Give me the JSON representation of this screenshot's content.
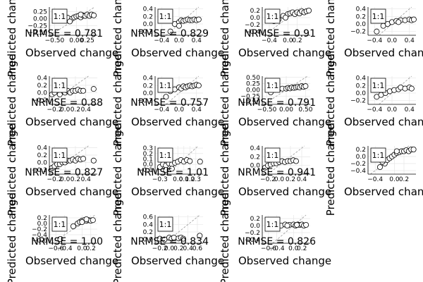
{
  "figure": {
    "xlabel": "Observed change",
    "ylabel": "Predicted change",
    "identity_label": "1:1",
    "nrmse_prefix": "NRMSE = ",
    "colors": {
      "point_fill": "#ffffff",
      "point_stroke": "#000000",
      "identity_line": "#9a9a9a",
      "grid": "#e6e6e6",
      "frame": "#000000",
      "text": "#000000"
    }
  },
  "chart_data": [
    {
      "type": "scatter",
      "nrmse": "0.781",
      "xticks": [
        "−0.50",
        "0.00",
        "0.25"
      ],
      "xtick_values": [
        -0.5,
        0.0,
        0.25
      ],
      "yticks": [
        "0.25",
        "0.00",
        "−0.25",
        "−0.50"
      ],
      "ytick_values": [
        0.25,
        0.0,
        -0.25,
        -0.5
      ],
      "xlim": [
        -0.62,
        0.48
      ],
      "ylim": [
        -0.6,
        0.42
      ],
      "points": [
        [
          -0.3,
          -0.05
        ],
        [
          -0.2,
          0.03
        ],
        [
          -0.1,
          0.0
        ],
        [
          -0.05,
          0.05
        ],
        [
          0.0,
          0.08
        ],
        [
          0.05,
          0.1
        ],
        [
          0.1,
          0.05
        ],
        [
          0.15,
          0.12
        ],
        [
          0.2,
          0.1
        ],
        [
          0.25,
          0.15
        ],
        [
          0.3,
          0.1
        ],
        [
          0.35,
          0.15
        ],
        [
          0.4,
          0.12
        ],
        [
          -0.15,
          -0.1
        ],
        [
          0.1,
          0.15
        ]
      ],
      "outside_points": []
    },
    {
      "type": "scatter",
      "nrmse": "0.829",
      "xticks": [
        "−0.4",
        "0.0",
        "0.4"
      ],
      "xtick_values": [
        -0.4,
        0.0,
        0.4
      ],
      "yticks": [
        "0.4",
        "0.2",
        "0.0",
        "−0.2"
      ],
      "ytick_values": [
        0.4,
        0.2,
        0.0,
        -0.2
      ],
      "xlim": [
        -0.55,
        0.55
      ],
      "ylim": [
        -0.3,
        0.45
      ],
      "points": [
        [
          -0.2,
          -0.2
        ],
        [
          -0.1,
          0.0
        ],
        [
          0.0,
          0.05
        ],
        [
          0.05,
          0.1
        ],
        [
          0.1,
          0.08
        ],
        [
          0.15,
          0.1
        ],
        [
          0.2,
          0.12
        ],
        [
          0.25,
          0.1
        ],
        [
          0.3,
          0.1
        ],
        [
          0.35,
          0.12
        ],
        [
          0.4,
          0.1
        ],
        [
          0.45,
          0.12
        ],
        [
          0.0,
          -0.05
        ]
      ],
      "outside_points": []
    },
    {
      "type": "scatter",
      "nrmse": "0.91",
      "xticks": [
        "−0.4",
        "0.0",
        "0.2"
      ],
      "xtick_values": [
        -0.4,
        0.0,
        0.2
      ],
      "yticks": [
        "0.2",
        "0.0",
        "−0.2",
        "−0.4"
      ],
      "ytick_values": [
        0.2,
        0.0,
        -0.2,
        -0.4
      ],
      "xlim": [
        -0.55,
        0.48
      ],
      "ylim": [
        -0.5,
        0.3
      ],
      "points": [
        [
          -0.3,
          -0.1
        ],
        [
          -0.2,
          -0.05
        ],
        [
          -0.1,
          0.05
        ],
        [
          0.0,
          0.1
        ],
        [
          0.05,
          0.12
        ],
        [
          0.1,
          0.15
        ],
        [
          0.15,
          0.1
        ],
        [
          0.2,
          0.15
        ],
        [
          0.25,
          0.12
        ],
        [
          0.3,
          0.18
        ],
        [
          0.35,
          0.15
        ],
        [
          0.4,
          0.18
        ],
        [
          0.45,
          0.2
        ],
        [
          -0.05,
          0.0
        ]
      ],
      "outside_points": []
    },
    {
      "type": "scatter",
      "nrmse": "",
      "xticks": [
        "−0.4",
        "0.0",
        "0.4"
      ],
      "xtick_values": [
        -0.4,
        0.0,
        0.4
      ],
      "yticks": [
        "0.4",
        "0.2",
        "0.0",
        "−0.2"
      ],
      "ytick_values": [
        0.4,
        0.2,
        0.0,
        -0.2
      ],
      "xlim": [
        -0.55,
        0.55
      ],
      "ylim": [
        -0.3,
        0.45
      ],
      "points": [
        [
          -0.35,
          -0.2
        ],
        [
          -0.2,
          -0.05
        ],
        [
          -0.1,
          0.0
        ],
        [
          0.0,
          0.05
        ],
        [
          0.1,
          0.08
        ],
        [
          0.2,
          0.1
        ],
        [
          0.3,
          0.1
        ],
        [
          0.4,
          0.12
        ],
        [
          0.45,
          0.1
        ],
        [
          0.5,
          0.12
        ],
        [
          0.15,
          0.05
        ]
      ],
      "outside_points": []
    },
    {
      "type": "scatter",
      "nrmse": "0.88",
      "xticks": [
        "−0.2",
        "0.0",
        "0.2",
        "0.4"
      ],
      "xtick_values": [
        -0.2,
        0.0,
        0.2,
        0.4
      ],
      "yticks": [
        "0.4",
        "0.2",
        "0.0",
        "−0.2"
      ],
      "ytick_values": [
        0.4,
        0.2,
        0.0,
        -0.2
      ],
      "xlim": [
        -0.3,
        0.62
      ],
      "ylim": [
        -0.32,
        0.45
      ],
      "points": [
        [
          -0.25,
          -0.05
        ],
        [
          -0.2,
          0.0
        ],
        [
          -0.1,
          -0.05
        ],
        [
          0.0,
          0.0
        ],
        [
          0.05,
          0.05
        ],
        [
          0.1,
          0.0
        ],
        [
          0.15,
          0.05
        ],
        [
          0.2,
          0.05
        ],
        [
          0.25,
          0.08
        ],
        [
          0.3,
          0.05
        ],
        [
          0.35,
          0.05
        ]
      ],
      "outside_points": [
        [
          0.55,
          0.1
        ]
      ]
    },
    {
      "type": "scatter",
      "nrmse": "0.757",
      "xticks": [
        "−0.4",
        "0.0",
        "0.4"
      ],
      "xtick_values": [
        -0.4,
        0.0,
        0.4
      ],
      "yticks": [
        "0.4",
        "0.2",
        "0.0",
        "−0.2"
      ],
      "ytick_values": [
        0.4,
        0.2,
        0.0,
        -0.2
      ],
      "xlim": [
        -0.55,
        0.55
      ],
      "ylim": [
        -0.3,
        0.45
      ],
      "points": [
        [
          -0.3,
          -0.1
        ],
        [
          -0.2,
          0.05
        ],
        [
          -0.1,
          0.1
        ],
        [
          0.0,
          0.15
        ],
        [
          0.05,
          0.12
        ],
        [
          0.1,
          0.18
        ],
        [
          0.15,
          0.15
        ],
        [
          0.2,
          0.18
        ],
        [
          0.25,
          0.2
        ],
        [
          0.3,
          0.18
        ],
        [
          0.35,
          0.2
        ],
        [
          0.4,
          0.22
        ],
        [
          0.45,
          0.2
        ]
      ],
      "outside_points": []
    },
    {
      "type": "scatter",
      "nrmse": "0.791",
      "xticks": [
        "−0.50",
        "0.00",
        "0.50"
      ],
      "xtick_values": [
        -0.5,
        0.0,
        0.5
      ],
      "yticks": [
        "0.50",
        "0.25",
        "0.00",
        "−0.25",
        "−0.50"
      ],
      "ytick_values": [
        0.5,
        0.25,
        0.0,
        -0.25,
        -0.5
      ],
      "xlim": [
        -0.62,
        0.62
      ],
      "ylim": [
        -0.58,
        0.55
      ],
      "points": [
        [
          -0.4,
          -0.1
        ],
        [
          -0.3,
          0.0
        ],
        [
          -0.2,
          0.02
        ],
        [
          -0.1,
          0.05
        ],
        [
          0.0,
          0.05
        ],
        [
          0.05,
          0.08
        ],
        [
          0.1,
          0.06
        ],
        [
          0.15,
          0.1
        ],
        [
          0.2,
          0.08
        ],
        [
          0.25,
          0.1
        ],
        [
          0.3,
          0.12
        ],
        [
          0.35,
          0.1
        ],
        [
          0.4,
          0.15
        ],
        [
          0.45,
          0.12
        ],
        [
          0.5,
          0.15
        ]
      ],
      "outside_points": []
    },
    {
      "type": "scatter",
      "nrmse": "",
      "xticks": [
        "−0.4",
        "0.0",
        "0.4"
      ],
      "xtick_values": [
        -0.4,
        0.0,
        0.4
      ],
      "yticks": [
        "0.4",
        "0.2",
        "0.0",
        "−0.2"
      ],
      "ytick_values": [
        0.4,
        0.2,
        0.0,
        -0.2
      ],
      "xlim": [
        -0.55,
        0.55
      ],
      "ylim": [
        -0.3,
        0.45
      ],
      "points": [
        [
          -0.35,
          -0.1
        ],
        [
          -0.25,
          -0.05
        ],
        [
          -0.15,
          0.0
        ],
        [
          -0.05,
          0.05
        ],
        [
          0.05,
          0.08
        ],
        [
          0.15,
          0.1
        ],
        [
          0.2,
          0.15
        ],
        [
          0.3,
          0.12
        ],
        [
          0.4,
          0.15
        ],
        [
          0.45,
          0.12
        ]
      ],
      "outside_points": []
    },
    {
      "type": "scatter",
      "nrmse": "0.827",
      "xticks": [
        "−0.2",
        "0.0",
        "0.2",
        "0.4"
      ],
      "xtick_values": [
        -0.2,
        0.0,
        0.2,
        0.4
      ],
      "yticks": [
        "0.4",
        "0.2",
        "0.0",
        "−0.2"
      ],
      "ytick_values": [
        0.4,
        0.2,
        0.0,
        -0.2
      ],
      "xlim": [
        -0.3,
        0.62
      ],
      "ylim": [
        -0.32,
        0.45
      ],
      "points": [
        [
          -0.25,
          -0.15
        ],
        [
          -0.2,
          -0.1
        ],
        [
          -0.15,
          -0.05
        ],
        [
          -0.1,
          -0.05
        ],
        [
          -0.05,
          0.0
        ],
        [
          0.0,
          0.0
        ],
        [
          0.05,
          0.05
        ],
        [
          0.1,
          0.05
        ],
        [
          0.15,
          0.08
        ],
        [
          0.2,
          0.05
        ],
        [
          0.25,
          0.1
        ],
        [
          0.3,
          0.08
        ],
        [
          0.35,
          0.1
        ]
      ],
      "outside_points": [
        [
          0.55,
          0.05
        ]
      ]
    },
    {
      "type": "scatter",
      "nrmse": "1.01",
      "xticks": [
        "−0.3",
        "0.0",
        "0.1",
        "0.2",
        "0.3"
      ],
      "xtick_values": [
        -0.3,
        0.0,
        0.1,
        0.2,
        0.3
      ],
      "yticks": [
        "0.3",
        "0.2",
        "0.1",
        "0.0",
        "−0.1"
      ],
      "ytick_values": [
        0.3,
        0.2,
        0.1,
        0.0,
        -0.1
      ],
      "xlim": [
        -0.38,
        0.42
      ],
      "ylim": [
        -0.18,
        0.34
      ],
      "points": [
        [
          -0.3,
          -0.05
        ],
        [
          -0.25,
          0.0
        ],
        [
          -0.2,
          -0.02
        ],
        [
          -0.15,
          0.02
        ],
        [
          -0.1,
          0.0
        ],
        [
          -0.05,
          0.03
        ],
        [
          0.0,
          0.05
        ],
        [
          0.05,
          0.08
        ],
        [
          0.1,
          0.05
        ],
        [
          0.15,
          0.08
        ],
        [
          0.2,
          0.06
        ],
        [
          -0.2,
          -0.1
        ],
        [
          -0.1,
          -0.08
        ]
      ],
      "outside_points": [
        [
          0.37,
          0.05
        ]
      ]
    },
    {
      "type": "scatter",
      "nrmse": "0.941",
      "xticks": [
        "−0.2",
        "0.0",
        "0.2",
        "0.4"
      ],
      "xtick_values": [
        -0.2,
        0.0,
        0.2,
        0.4
      ],
      "yticks": [
        "0.4",
        "0.2",
        "0.0"
      ],
      "ytick_values": [
        0.4,
        0.2,
        0.0
      ],
      "xlim": [
        -0.3,
        0.55
      ],
      "ylim": [
        -0.2,
        0.45
      ],
      "points": [
        [
          -0.25,
          -0.05
        ],
        [
          -0.2,
          0.0
        ],
        [
          -0.15,
          0.02
        ],
        [
          -0.1,
          0.05
        ],
        [
          -0.05,
          0.05
        ],
        [
          0.0,
          0.08
        ],
        [
          0.05,
          0.1
        ],
        [
          0.1,
          0.08
        ],
        [
          0.15,
          0.1
        ],
        [
          0.2,
          0.1
        ],
        [
          0.25,
          0.12
        ],
        [
          0.3,
          0.1
        ]
      ],
      "outside_points": []
    },
    {
      "type": "scatter",
      "nrmse": "",
      "xticks": [
        "−0.4",
        "0.0",
        "0.2"
      ],
      "xtick_values": [
        -0.4,
        0.0,
        0.2
      ],
      "yticks": [
        "0.2",
        "0.0",
        "−0.2",
        "−0.4"
      ],
      "ytick_values": [
        0.2,
        0.0,
        -0.2,
        -0.4
      ],
      "xlim": [
        -0.55,
        0.45
      ],
      "ylim": [
        -0.5,
        0.3
      ],
      "points": [
        [
          -0.3,
          -0.3
        ],
        [
          -0.2,
          -0.2
        ],
        [
          -0.15,
          -0.1
        ],
        [
          -0.1,
          -0.05
        ],
        [
          -0.05,
          0.0
        ],
        [
          0.0,
          0.05
        ],
        [
          0.05,
          0.1
        ],
        [
          0.1,
          0.12
        ],
        [
          0.15,
          0.15
        ],
        [
          0.2,
          0.15
        ],
        [
          0.25,
          0.18
        ],
        [
          0.3,
          0.15
        ],
        [
          0.35,
          0.2
        ],
        [
          0.4,
          0.2
        ],
        [
          -0.25,
          -0.15
        ],
        [
          0.05,
          0.15
        ]
      ],
      "outside_points": []
    },
    {
      "type": "scatter",
      "nrmse": "1.00",
      "xticks": [
        "−0.6",
        "−0.4",
        "0.0",
        "0.2"
      ],
      "xtick_values": [
        -0.6,
        -0.4,
        0.0,
        0.2
      ],
      "yticks": [
        "0.2",
        "0.0",
        "−0.2",
        "−0.4",
        "−0.6"
      ],
      "ytick_values": [
        0.2,
        0.0,
        -0.2,
        -0.4,
        -0.6
      ],
      "xlim": [
        -0.75,
        0.35
      ],
      "ylim": [
        -0.7,
        0.3
      ],
      "points": [
        [
          -0.2,
          -0.1
        ],
        [
          -0.1,
          0.0
        ],
        [
          -0.05,
          0.05
        ],
        [
          0.0,
          0.1
        ],
        [
          0.05,
          0.12
        ],
        [
          0.1,
          0.1
        ],
        [
          0.15,
          0.12
        ],
        [
          0.2,
          0.1
        ],
        [
          0.25,
          0.12
        ],
        [
          0.0,
          0.05
        ],
        [
          -0.5,
          -0.55
        ],
        [
          0.1,
          0.15
        ]
      ],
      "outside_points": []
    },
    {
      "type": "scatter",
      "nrmse": "0.834",
      "xticks": [
        "−0.2",
        "0.0",
        "0.2",
        "0.4",
        "0.6"
      ],
      "xtick_values": [
        -0.2,
        0.0,
        0.2,
        0.4,
        0.6
      ],
      "yticks": [
        "0.6",
        "0.4",
        "0.2",
        "0.0"
      ],
      "ytick_values": [
        0.6,
        0.4,
        0.2,
        0.0
      ],
      "xlim": [
        -0.3,
        0.72
      ],
      "ylim": [
        -0.1,
        0.65
      ],
      "points": [
        [
          -0.1,
          0.0
        ],
        [
          0.0,
          0.05
        ],
        [
          0.05,
          0.02
        ],
        [
          0.1,
          0.05
        ],
        [
          0.2,
          0.03
        ],
        [
          0.25,
          0.05
        ],
        [
          0.3,
          0.02
        ],
        [
          -0.2,
          0.02
        ]
      ],
      "outside_points": [
        [
          0.65,
          0.1
        ]
      ]
    },
    {
      "type": "scatter",
      "nrmse": "0.826",
      "xticks": [
        "−0.6",
        "−0.4",
        "0.0",
        "0.2"
      ],
      "xtick_values": [
        -0.6,
        -0.4,
        0.0,
        0.2
      ],
      "yticks": [
        "0.2",
        "0.0",
        "−0.2",
        "−0.4"
      ],
      "ytick_values": [
        0.2,
        0.0,
        -0.2,
        -0.4
      ],
      "xlim": [
        -0.75,
        0.4
      ],
      "ylim": [
        -0.5,
        0.3
      ],
      "points": [
        [
          -0.5,
          0.0
        ],
        [
          -0.4,
          0.02
        ],
        [
          -0.3,
          0.0
        ],
        [
          -0.2,
          0.03
        ],
        [
          -0.1,
          0.02
        ],
        [
          0.0,
          0.03
        ],
        [
          0.05,
          0.0
        ],
        [
          0.1,
          0.03
        ],
        [
          0.15,
          0.02
        ],
        [
          0.2,
          0.03
        ],
        [
          0.25,
          0.0
        ],
        [
          0.3,
          0.02
        ],
        [
          -0.15,
          0.0
        ],
        [
          0.08,
          0.02
        ]
      ],
      "outside_points": []
    }
  ]
}
